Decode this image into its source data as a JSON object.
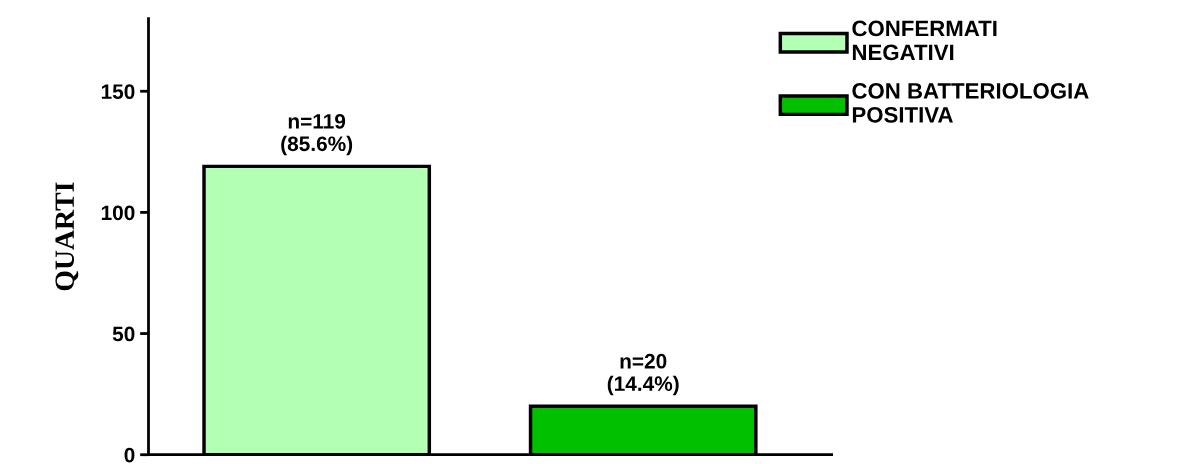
{
  "chart_data": {
    "type": "bar",
    "ylabel": "QUARTI",
    "categories": [
      null,
      null
    ],
    "series": [
      {
        "name": "CONFERMATI\nNEGATIVI",
        "color": "#b3ffb3",
        "values": [
          119,
          null
        ],
        "value_labels": [
          "n=119\n(85.6%)",
          null
        ]
      },
      {
        "name": "CON BATTERIOLOGIA\nPOSITIVA",
        "color": "#00c000",
        "values": [
          null,
          20
        ],
        "value_labels": [
          null,
          "n=20\n(14.4%)"
        ]
      }
    ],
    "ylim": [
      0,
      180
    ],
    "yticks": [
      0,
      50,
      100,
      150
    ],
    "grid": false,
    "legend": "top right",
    "tick_labels": "y"
  }
}
